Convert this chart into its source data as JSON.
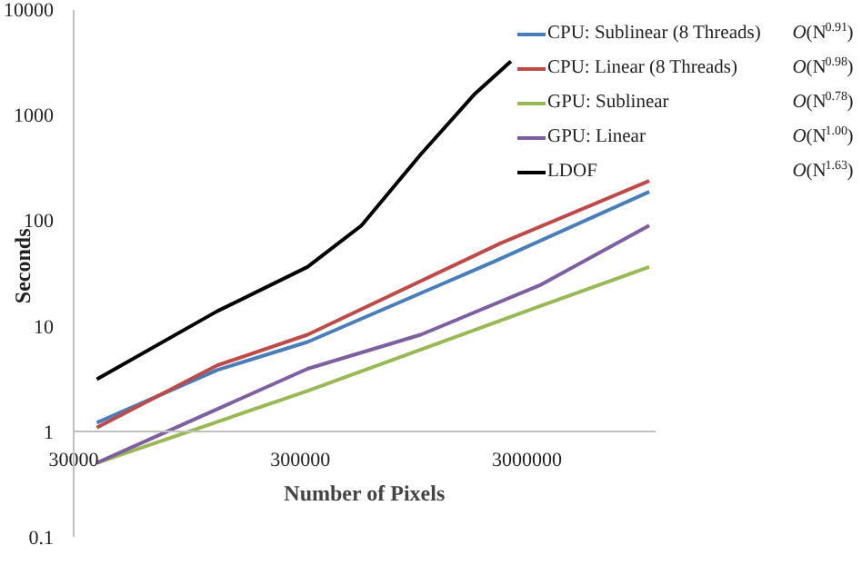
{
  "chart_data": {
    "type": "line",
    "xlabel": "Number of Pixels",
    "ylabel": "Seconds",
    "log": "xy",
    "xlim": [
      30000,
      11000000
    ],
    "xticks": [
      30000,
      300000,
      3000000
    ],
    "ylim": [
      0.1,
      10000
    ],
    "yticks": [
      0.1,
      1,
      10,
      100,
      1000,
      10000
    ],
    "grid": false,
    "legend": "top right",
    "marker": "none",
    "line_style": "solid",
    "annotations": [
      "O(N$^{0.91}$)",
      "O(N$^{0.98}$)",
      "O(N$^{0.78}$)",
      "O(N$^{1.00}$)",
      "O(N$^{1.63}$)"
    ],
    "series": [
      {
        "name": "CPU: Sublinear (8 Threads)",
        "color": "#4a7ebb",
        "x": [
          38000,
          129000,
          323000,
          2120000,
          10400000
        ],
        "values": [
          1.2,
          3.8,
          7.0,
          40,
          186
        ]
      },
      {
        "name": "CPU: Linear (8 Threads)",
        "color": "#be4b48",
        "x": [
          38000,
          129000,
          323000,
          2280000,
          10400000
        ],
        "values": [
          1.08,
          4.2,
          8.2,
          60,
          236
        ]
      },
      {
        "name": "GPU: Sublinear",
        "color": "#98b954",
        "x": [
          38000,
          323000,
          3290000,
          10400000
        ],
        "values": [
          0.5,
          2.4,
          14.8,
          36
        ]
      },
      {
        "name": "GPU: Linear",
        "color": "#7d60a0",
        "x": [
          38000,
          323000,
          1020000,
          3470000,
          10400000
        ],
        "values": [
          0.5,
          3.9,
          8.2,
          24.5,
          89
        ]
      },
      {
        "name": "LDOF",
        "color": "#000000",
        "x": [
          38000,
          129000,
          323000,
          559000,
          1020000,
          1770000,
          2550000
        ],
        "values": [
          3.1,
          13.7,
          36,
          89,
          420,
          1580,
          3200
        ]
      }
    ]
  }
}
